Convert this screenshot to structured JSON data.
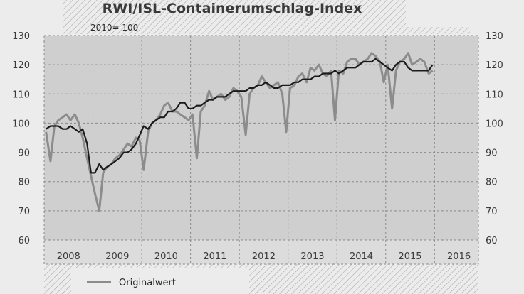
{
  "header": {
    "title": "RWI/ISL-Containerumschlag-Index",
    "subtitle": "2010= 100"
  },
  "legend": {
    "original_label": "Originalwert"
  },
  "colors": {
    "original": "#8c8c8c",
    "seasonal": "#1b1b1b",
    "background": "#ececec",
    "photo": "#cfcfcf"
  },
  "chart_data": {
    "type": "line",
    "title": "RWI/ISL-Containerumschlag-Index",
    "subtitle": "2010= 100",
    "ylim": [
      60,
      130
    ],
    "yticks": [
      60,
      70,
      80,
      90,
      100,
      110,
      120,
      130
    ],
    "xlim": [
      2008.0,
      2016.9
    ],
    "xticks": [
      "2008",
      "2009",
      "2010",
      "2011",
      "2012",
      "2013",
      "2014",
      "2015",
      "2016"
    ],
    "grid": true,
    "legend_position": "bottom-left",
    "series": [
      {
        "name": "Originalwert",
        "x": [
          2008.04,
          2008.13,
          2008.21,
          2008.29,
          2008.38,
          2008.46,
          2008.54,
          2008.63,
          2008.71,
          2008.79,
          2008.88,
          2008.96,
          2009.04,
          2009.13,
          2009.21,
          2009.29,
          2009.38,
          2009.46,
          2009.54,
          2009.63,
          2009.71,
          2009.79,
          2009.88,
          2009.96,
          2010.04,
          2010.13,
          2010.21,
          2010.29,
          2010.38,
          2010.46,
          2010.54,
          2010.63,
          2010.71,
          2010.79,
          2010.88,
          2010.96,
          2011.04,
          2011.13,
          2011.21,
          2011.29,
          2011.38,
          2011.46,
          2011.54,
          2011.63,
          2011.71,
          2011.79,
          2011.88,
          2011.96,
          2012.04,
          2012.13,
          2012.21,
          2012.29,
          2012.38,
          2012.46,
          2012.54,
          2012.63,
          2012.71,
          2012.79,
          2012.88,
          2012.96,
          2013.04,
          2013.13,
          2013.21,
          2013.29,
          2013.38,
          2013.46,
          2013.54,
          2013.63,
          2013.71,
          2013.79,
          2013.88,
          2013.96,
          2014.04,
          2014.13,
          2014.21,
          2014.29,
          2014.38,
          2014.46,
          2014.54,
          2014.63,
          2014.71,
          2014.79,
          2014.88,
          2014.96,
          2015.04,
          2015.13,
          2015.21,
          2015.29,
          2015.38,
          2015.46,
          2015.54,
          2015.63,
          2015.71,
          2015.79,
          2015.88,
          2015.96
        ],
        "values": [
          97,
          87,
          99,
          101,
          102,
          103,
          101,
          103,
          100,
          95,
          88,
          82,
          76,
          70,
          83,
          85,
          86,
          88,
          89,
          91,
          93,
          92,
          95,
          94,
          84,
          97,
          100,
          101,
          103,
          106,
          107,
          104,
          104,
          103,
          102,
          101,
          103,
          88,
          104,
          106,
          111,
          108,
          109,
          110,
          108,
          109,
          112,
          111,
          109,
          96,
          110,
          112,
          113,
          116,
          114,
          112,
          113,
          114,
          110,
          97,
          112,
          113,
          116,
          117,
          114,
          119,
          118,
          120,
          117,
          116,
          118,
          101,
          118,
          117,
          121,
          122,
          122,
          120,
          121,
          122,
          124,
          123,
          121,
          114,
          120,
          105,
          118,
          121,
          122,
          124,
          120,
          121,
          122,
          121,
          117,
          118
        ]
      },
      {
        "name": "",
        "x": [
          2008.04,
          2008.13,
          2008.21,
          2008.29,
          2008.38,
          2008.46,
          2008.54,
          2008.63,
          2008.71,
          2008.79,
          2008.88,
          2008.96,
          2009.04,
          2009.13,
          2009.21,
          2009.29,
          2009.38,
          2009.46,
          2009.54,
          2009.63,
          2009.71,
          2009.79,
          2009.88,
          2009.96,
          2010.04,
          2010.13,
          2010.21,
          2010.29,
          2010.38,
          2010.46,
          2010.54,
          2010.63,
          2010.71,
          2010.79,
          2010.88,
          2010.96,
          2011.04,
          2011.13,
          2011.21,
          2011.29,
          2011.38,
          2011.46,
          2011.54,
          2011.63,
          2011.71,
          2011.79,
          2011.88,
          2011.96,
          2012.04,
          2012.13,
          2012.21,
          2012.29,
          2012.38,
          2012.46,
          2012.54,
          2012.63,
          2012.71,
          2012.79,
          2012.88,
          2012.96,
          2013.04,
          2013.13,
          2013.21,
          2013.29,
          2013.38,
          2013.46,
          2013.54,
          2013.63,
          2013.71,
          2013.79,
          2013.88,
          2013.96,
          2014.04,
          2014.13,
          2014.21,
          2014.29,
          2014.38,
          2014.46,
          2014.54,
          2014.63,
          2014.71,
          2014.79,
          2014.88,
          2014.96,
          2015.04,
          2015.13,
          2015.21,
          2015.29,
          2015.38,
          2015.46,
          2015.54,
          2015.63,
          2015.71,
          2015.79,
          2015.88,
          2015.96
        ],
        "values": [
          98,
          99,
          99,
          99,
          98,
          98,
          99,
          98,
          97,
          98,
          93,
          83,
          83,
          86,
          84,
          85,
          86,
          87,
          88,
          90,
          90,
          91,
          93,
          96,
          99,
          98,
          100,
          101,
          102,
          102,
          104,
          104,
          105,
          107,
          107,
          105,
          105,
          106,
          106,
          107,
          108,
          108,
          109,
          109,
          109,
          110,
          111,
          111,
          111,
          111,
          112,
          112,
          113,
          113,
          114,
          113,
          112,
          112,
          113,
          113,
          113,
          114,
          114,
          115,
          115,
          115,
          116,
          116,
          117,
          117,
          117,
          118,
          117,
          118,
          119,
          119,
          119,
          120,
          121,
          121,
          121,
          122,
          121,
          120,
          119,
          118,
          120,
          121,
          121,
          119,
          118,
          118,
          118,
          118,
          118,
          120
        ]
      }
    ]
  }
}
